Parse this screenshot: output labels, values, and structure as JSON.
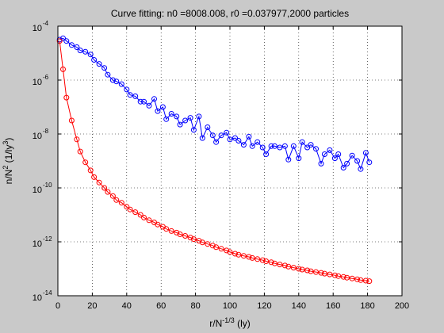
{
  "chart_data": {
    "type": "scatter",
    "title": "Curve fitting: n0 =8008.008, r0 =0.037977,2000 particles",
    "xlabel_base": "r/N",
    "xlabel_exp": "-1/3",
    "xlabel_tail": " (ly)",
    "ylabel_base": "n/N",
    "ylabel_exp": "2",
    "ylabel_tail": " (1/ly",
    "ylabel_exp2": "3",
    "ylabel_close": ")",
    "xlim": [
      0,
      200
    ],
    "ylim_log10": [
      -14,
      -4
    ],
    "yscale": "log",
    "grid": true,
    "x_ticks": [
      0,
      20,
      40,
      60,
      80,
      100,
      120,
      140,
      160,
      180,
      200
    ],
    "y_tick_labels": [
      {
        "exp": -4,
        "base": "10",
        "sup": "-4"
      },
      {
        "exp": -6,
        "base": "10",
        "sup": "-6"
      },
      {
        "exp": -8,
        "base": "10",
        "sup": "-8"
      },
      {
        "exp": -10,
        "base": "10",
        "sup": "-10"
      },
      {
        "exp": -12,
        "base": "10",
        "sup": "-12"
      },
      {
        "exp": -14,
        "base": "10",
        "sup": "-14"
      }
    ],
    "series": [
      {
        "color": "#0000ff",
        "marker": "circle",
        "x": [
          1,
          3,
          5,
          8,
          11,
          13,
          16,
          19,
          21,
          24,
          27,
          29,
          32,
          34,
          37,
          40,
          42,
          45,
          48,
          50,
          53,
          56,
          58,
          61,
          63,
          66,
          69,
          71,
          74,
          77,
          79,
          82,
          84,
          87,
          90,
          92,
          95,
          98,
          100,
          103,
          105,
          108,
          111,
          113,
          116,
          119,
          121,
          124,
          126,
          129,
          132,
          134,
          137,
          140,
          142,
          145,
          147,
          150,
          153,
          155,
          158,
          161,
          163,
          166,
          168,
          171,
          174,
          176,
          179,
          181
        ],
        "y_log10": [
          -4.5,
          -4.45,
          -4.55,
          -4.7,
          -4.78,
          -4.9,
          -4.95,
          -5.05,
          -5.25,
          -5.4,
          -5.55,
          -5.8,
          -6.0,
          -6.05,
          -6.15,
          -6.35,
          -6.55,
          -6.6,
          -6.8,
          -6.8,
          -6.95,
          -6.7,
          -7.15,
          -7.0,
          -7.45,
          -7.25,
          -7.35,
          -7.65,
          -7.5,
          -7.4,
          -7.85,
          -7.35,
          -8.15,
          -7.75,
          -8.05,
          -8.3,
          -8.05,
          -7.95,
          -8.2,
          -8.15,
          -8.25,
          -8.4,
          -8.1,
          -8.45,
          -8.3,
          -8.5,
          -8.75,
          -8.45,
          -8.45,
          -8.5,
          -8.45,
          -8.95,
          -8.45,
          -8.9,
          -8.3,
          -8.5,
          -8.4,
          -8.55,
          -9.1,
          -8.75,
          -8.6,
          -8.9,
          -8.75,
          -9.25,
          -9.1,
          -8.8,
          -9.0,
          -9.3,
          -8.7,
          -9.05
        ]
      },
      {
        "color": "#ff0000",
        "marker": "circle-line",
        "x": [
          1,
          3,
          5,
          8,
          11,
          13,
          16,
          19,
          21,
          24,
          27,
          29,
          32,
          34,
          37,
          40,
          42,
          45,
          48,
          50,
          53,
          56,
          58,
          61,
          63,
          66,
          69,
          71,
          74,
          77,
          79,
          82,
          84,
          87,
          90,
          92,
          95,
          98,
          100,
          103,
          105,
          108,
          111,
          113,
          116,
          119,
          121,
          124,
          126,
          129,
          132,
          134,
          137,
          140,
          142,
          145,
          147,
          150,
          153,
          155,
          158,
          161,
          163,
          166,
          168,
          171,
          174,
          176,
          179,
          181
        ],
        "y_log10": [
          -4.55,
          -5.6,
          -6.65,
          -7.5,
          -8.2,
          -8.65,
          -9.05,
          -9.35,
          -9.6,
          -9.8,
          -10.0,
          -10.15,
          -10.3,
          -10.45,
          -10.55,
          -10.7,
          -10.8,
          -10.9,
          -11.0,
          -11.1,
          -11.2,
          -11.28,
          -11.36,
          -11.44,
          -11.52,
          -11.6,
          -11.66,
          -11.72,
          -11.78,
          -11.84,
          -11.9,
          -11.96,
          -12.02,
          -12.08,
          -12.14,
          -12.2,
          -12.26,
          -12.32,
          -12.38,
          -12.44,
          -12.48,
          -12.52,
          -12.56,
          -12.6,
          -12.64,
          -12.68,
          -12.72,
          -12.76,
          -12.8,
          -12.84,
          -12.88,
          -12.92,
          -12.96,
          -13.0,
          -13.03,
          -13.06,
          -13.09,
          -13.12,
          -13.15,
          -13.18,
          -13.21,
          -13.24,
          -13.27,
          -13.3,
          -13.33,
          -13.36,
          -13.39,
          -13.42,
          -13.44,
          -13.46
        ]
      }
    ]
  }
}
